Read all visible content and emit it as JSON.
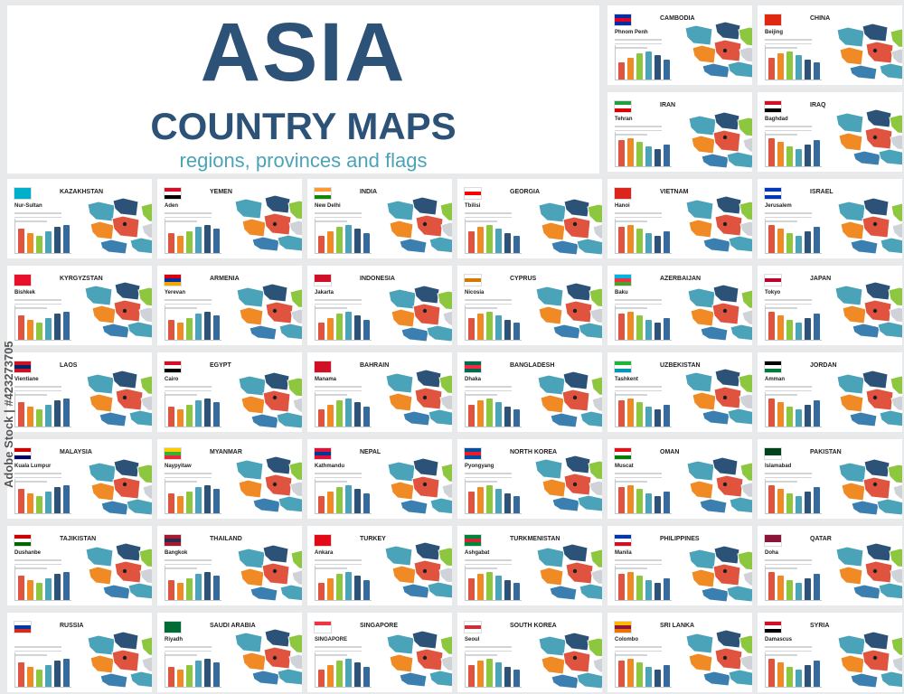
{
  "header": {
    "title": "ASIA",
    "subtitle": "COUNTRY MAPS",
    "tagline": "regions, provinces and flags"
  },
  "colors": {
    "title": "#2d5278",
    "tagline": "#4aa3b8",
    "bars": [
      "#e0533f",
      "#f08a24",
      "#8dc63f",
      "#4aa3b8",
      "#2d5278",
      "#356b9c"
    ],
    "map_palette": [
      "#4aa3b8",
      "#2d5278",
      "#8dc63f",
      "#f08a24",
      "#e0533f",
      "#cfd3d8",
      "#3b7fb0"
    ]
  },
  "watermark": {
    "text": "Adobe Stock | #423273705"
  },
  "countries": [
    {
      "name": "CAMBODIA",
      "capital": "Phnom Penh",
      "flag": [
        "#032ea1",
        "#e00025",
        "#032ea1"
      ]
    },
    {
      "name": "CHINA",
      "capital": "Beijing",
      "flag": [
        "#de2910",
        "#de2910",
        "#de2910"
      ]
    },
    {
      "name": "IRAN",
      "capital": "Tehran",
      "flag": [
        "#239f40",
        "#ffffff",
        "#da0000"
      ]
    },
    {
      "name": "IRAQ",
      "capital": "Baghdad",
      "flag": [
        "#ce1126",
        "#ffffff",
        "#000000"
      ]
    },
    {
      "name": "KAZAKHSTAN",
      "capital": "Nur-Sultan",
      "flag": [
        "#00afca",
        "#00afca",
        "#00afca"
      ]
    },
    {
      "name": "YEMEN",
      "capital": "Aden",
      "flag": [
        "#ce1126",
        "#ffffff",
        "#000000"
      ]
    },
    {
      "name": "INDIA",
      "capital": "New Delhi",
      "flag": [
        "#ff9933",
        "#ffffff",
        "#138808"
      ]
    },
    {
      "name": "GEORGIA",
      "capital": "Tbilisi",
      "flag": [
        "#ffffff",
        "#ff0000",
        "#ffffff"
      ]
    },
    {
      "name": "VIETNAM",
      "capital": "Hanoi",
      "flag": [
        "#da251d",
        "#da251d",
        "#da251d"
      ]
    },
    {
      "name": "ISRAEL",
      "capital": "Jerusalem",
      "flag": [
        "#0038b8",
        "#ffffff",
        "#0038b8"
      ]
    },
    {
      "name": "KYRGYZSTAN",
      "capital": "Bishkek",
      "flag": [
        "#e8112d",
        "#e8112d",
        "#e8112d"
      ]
    },
    {
      "name": "ARMENIA",
      "capital": "Yerevan",
      "flag": [
        "#d90012",
        "#0033a0",
        "#f2a800"
      ]
    },
    {
      "name": "INDONESIA",
      "capital": "Jakarta",
      "flag": [
        "#ce1126",
        "#ce1126",
        "#ffffff"
      ]
    },
    {
      "name": "CYPRUS",
      "capital": "Nicosia",
      "flag": [
        "#ffffff",
        "#d57800",
        "#ffffff"
      ]
    },
    {
      "name": "AZERBAIJAN",
      "capital": "Baku",
      "flag": [
        "#00b5e2",
        "#ef3340",
        "#509e2f"
      ]
    },
    {
      "name": "JAPAN",
      "capital": "Tokyo",
      "flag": [
        "#ffffff",
        "#bc002d",
        "#ffffff"
      ]
    },
    {
      "name": "LAOS",
      "capital": "Vientiane",
      "flag": [
        "#ce1126",
        "#002868",
        "#ce1126"
      ]
    },
    {
      "name": "EGYPT",
      "capital": "Cairo",
      "flag": [
        "#ce1126",
        "#ffffff",
        "#000000"
      ]
    },
    {
      "name": "BAHRAIN",
      "capital": "Manama",
      "flag": [
        "#ce1126",
        "#ce1126",
        "#ce1126"
      ]
    },
    {
      "name": "BANGLADESH",
      "capital": "Dhaka",
      "flag": [
        "#006a4e",
        "#f42a41",
        "#006a4e"
      ]
    },
    {
      "name": "UZBEKISTAN",
      "capital": "Tashkent",
      "flag": [
        "#1eb53a",
        "#ffffff",
        "#0099b5"
      ]
    },
    {
      "name": "JORDAN",
      "capital": "Amman",
      "flag": [
        "#000000",
        "#ffffff",
        "#007a3d"
      ]
    },
    {
      "name": "MALAYSIA",
      "capital": "Kuala Lumpur",
      "flag": [
        "#cc0001",
        "#ffffff",
        "#010066"
      ]
    },
    {
      "name": "MYANMAR",
      "capital": "Naypyitaw",
      "flag": [
        "#fecb00",
        "#34b233",
        "#ea2839"
      ]
    },
    {
      "name": "NEPAL",
      "capital": "Kathmandu",
      "flag": [
        "#dc143c",
        "#003893",
        "#dc143c"
      ]
    },
    {
      "name": "NORTH KOREA",
      "capital": "Pyongyang",
      "flag": [
        "#024fa2",
        "#ed1c27",
        "#024fa2"
      ]
    },
    {
      "name": "OMAN",
      "capital": "Muscat",
      "flag": [
        "#db161b",
        "#ffffff",
        "#008000"
      ]
    },
    {
      "name": "PAKISTAN",
      "capital": "Islamabad",
      "flag": [
        "#01411c",
        "#01411c",
        "#ffffff"
      ]
    },
    {
      "name": "TAJIKISTAN",
      "capital": "Dushanbe",
      "flag": [
        "#cc0000",
        "#ffffff",
        "#006600"
      ]
    },
    {
      "name": "THAILAND",
      "capital": "Bangkok",
      "flag": [
        "#a51931",
        "#2d2a4a",
        "#a51931"
      ]
    },
    {
      "name": "TURKEY",
      "capital": "Ankara",
      "flag": [
        "#e30a17",
        "#e30a17",
        "#e30a17"
      ]
    },
    {
      "name": "TURKMENISTAN",
      "capital": "Ashgabat",
      "flag": [
        "#00843d",
        "#d22630",
        "#00843d"
      ]
    },
    {
      "name": "PHILIPPINES",
      "capital": "Manila",
      "flag": [
        "#0038a8",
        "#ffffff",
        "#ce1126"
      ]
    },
    {
      "name": "QATAR",
      "capital": "Doha",
      "flag": [
        "#8a1538",
        "#8a1538",
        "#ffffff"
      ]
    },
    {
      "name": "RUSSIA",
      "capital": "",
      "flag": [
        "#ffffff",
        "#0039a6",
        "#d52b1e"
      ]
    },
    {
      "name": "SAUDI ARABIA",
      "capital": "Riyadh",
      "flag": [
        "#006c35",
        "#006c35",
        "#006c35"
      ]
    },
    {
      "name": "SINGAPORE",
      "capital": "SINGAPORE",
      "flag": [
        "#ef3340",
        "#ffffff",
        "#ffffff"
      ]
    },
    {
      "name": "SOUTH KOREA",
      "capital": "Seoul",
      "flag": [
        "#ffffff",
        "#cd2e3a",
        "#ffffff"
      ]
    },
    {
      "name": "SRI LANKA",
      "capital": "Colombo",
      "flag": [
        "#ffb700",
        "#8d153a",
        "#eb7400"
      ]
    },
    {
      "name": "SYRIA",
      "capital": "Damascus",
      "flag": [
        "#ce1126",
        "#ffffff",
        "#000000"
      ]
    }
  ]
}
